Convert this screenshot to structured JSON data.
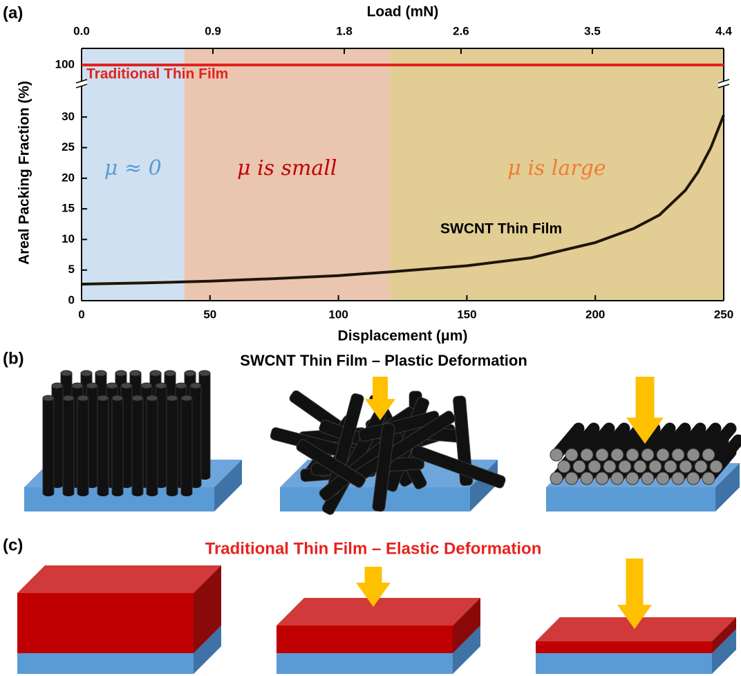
{
  "panel_labels": [
    "(a)",
    "(b)",
    "(c)"
  ],
  "chart_data": {
    "type": "line",
    "xlabel": "Displacement (μm)",
    "x2label": "Load (mN)",
    "ylabel": "Areal Packing Fraction (%)",
    "xlim": [
      0,
      250
    ],
    "xticks": [
      0,
      50,
      100,
      150,
      200,
      250
    ],
    "x2lim": [
      0,
      4.4
    ],
    "x2ticks": [
      {
        "value": 0,
        "label": "0.0"
      },
      0.9,
      1.8,
      2.6,
      3.5,
      4.4
    ],
    "ylim": [
      0,
      35
    ],
    "yticks": [
      0,
      5,
      10,
      15,
      20,
      25,
      30
    ],
    "ylim_upper": [
      97,
      103
    ],
    "yticks_upper": [
      100
    ],
    "regions": [
      {
        "label": "μ ≈ 0",
        "x_range": [
          0,
          40
        ],
        "color": "#cfe0f1",
        "text_color": "#5b9bd5"
      },
      {
        "label": "μ is small",
        "x_range": [
          40,
          120
        ],
        "color": "#eac6b1",
        "text_color": "#c00000"
      },
      {
        "label": "μ is large",
        "x_range": [
          120,
          250
        ],
        "color": "#e2cd95",
        "text_color": "#ed7d31"
      }
    ],
    "series": [
      {
        "name": "Traditional Thin Film",
        "color": "#e3221e",
        "axis": "upper",
        "x": [
          0,
          250
        ],
        "values": [
          100,
          100
        ]
      },
      {
        "name": "SWCNT Thin Film",
        "color": "#1e1608",
        "x": [
          0,
          25,
          50,
          75,
          100,
          120,
          150,
          175,
          200,
          215,
          225,
          235,
          240,
          245,
          250
        ],
        "values": [
          2.7,
          2.9,
          3.2,
          3.6,
          4.1,
          4.7,
          5.7,
          7.0,
          9.5,
          11.8,
          14,
          18,
          21,
          25,
          30.3
        ]
      }
    ]
  },
  "panel_b": {
    "title": "SWCNT Thin Film – Plastic Deformation"
  },
  "panel_c": {
    "title": "Traditional Thin Film – Elastic Deformation"
  }
}
